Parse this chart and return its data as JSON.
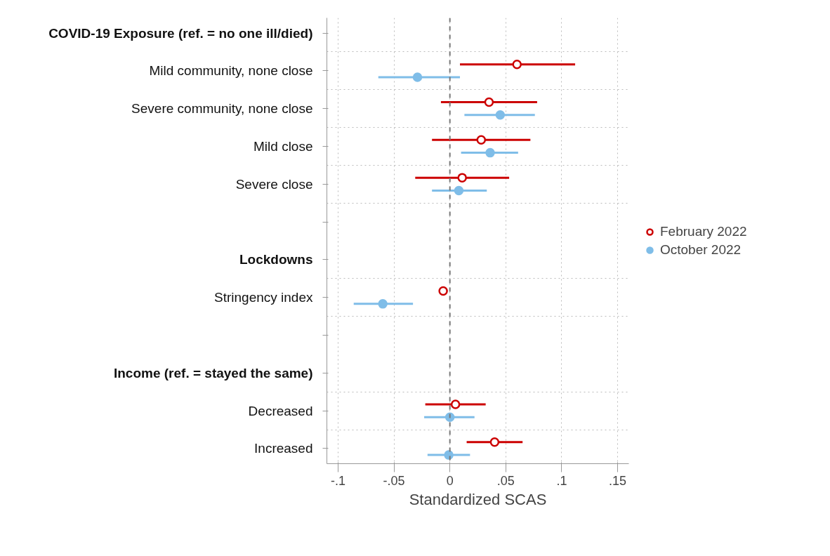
{
  "chart_data": {
    "type": "scatter",
    "orientation": "horizontal",
    "xlabel": "Standardized SCAS",
    "categories": [
      "COVID-19 Exposure (ref. = no one ill/died)",
      "Mild community, none close",
      "Severe community, none close",
      "Mild close",
      "Severe close",
      null,
      "Lockdowns",
      "Stringency index",
      null,
      "Income (ref. = stayed the same)",
      "Decreased",
      "Increased"
    ],
    "series": [
      {
        "name": "February 2022",
        "color": "#cc0000",
        "values": [
          null,
          0.06,
          0.035,
          0.028,
          0.011,
          null,
          null,
          -0.006,
          null,
          null,
          0.005,
          0.04
        ],
        "errors": [
          null,
          [
            0.009,
            0.112
          ],
          [
            -0.008,
            0.078
          ],
          [
            -0.016,
            0.072
          ],
          [
            -0.031,
            0.053
          ],
          null,
          null,
          null,
          null,
          null,
          [
            -0.022,
            0.032
          ],
          [
            0.015,
            0.065
          ]
        ]
      },
      {
        "name": "October 2022",
        "color": "#7fbde8",
        "values": [
          null,
          -0.029,
          0.045,
          0.036,
          0.008,
          null,
          null,
          -0.06,
          null,
          null,
          0.0,
          -0.001
        ],
        "errors": [
          null,
          [
            -0.064,
            0.009
          ],
          [
            0.013,
            0.076
          ],
          [
            0.01,
            0.061
          ],
          [
            -0.016,
            0.033
          ],
          null,
          null,
          [
            -0.086,
            -0.033
          ],
          null,
          null,
          [
            -0.023,
            0.022
          ],
          [
            -0.02,
            0.018
          ]
        ]
      }
    ],
    "xlim": [
      -0.11,
      0.16
    ],
    "xticks": [
      {
        "value": -0.1,
        "label": "-.1"
      },
      {
        "value": -0.05,
        "label": "-.05"
      },
      0,
      {
        "value": 0.05,
        "label": ".05"
      },
      {
        "value": 0.1,
        "label": ".1"
      },
      {
        "value": 0.15,
        "label": ".15"
      }
    ],
    "ref_lines": [
      {
        "axis": "x",
        "value": 0,
        "label": null,
        "color": "#777777",
        "line_style": "dashed"
      }
    ],
    "grid": true,
    "legend": "right",
    "marker": "circle"
  }
}
